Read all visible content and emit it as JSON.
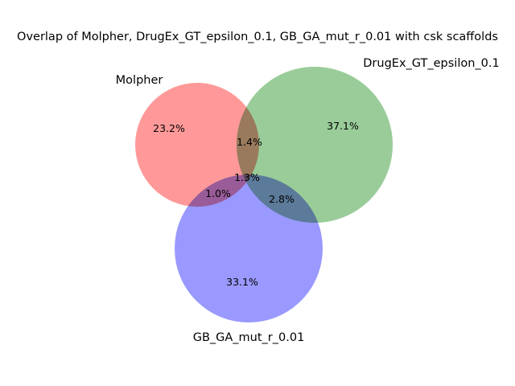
{
  "chart_data": {
    "type": "venn3",
    "title": "Overlap of Molpher, DrugEx_GT_epsilon_0.1, GB_GA_mut_r_0.01 with csk scaffolds",
    "sets": [
      {
        "name": "Molpher",
        "color": "#ff9999"
      },
      {
        "name": "DrugEx_GT_epsilon_0.1",
        "color": "#99cc99"
      },
      {
        "name": "GB_GA_mut_r_0.01",
        "color": "#9999ff"
      }
    ],
    "regions": [
      {
        "sets": [
          "Molpher"
        ],
        "label": "23.2%",
        "value": 23.2
      },
      {
        "sets": [
          "DrugEx_GT_epsilon_0.1"
        ],
        "label": "37.1%",
        "value": 37.1
      },
      {
        "sets": [
          "GB_GA_mut_r_0.01"
        ],
        "label": "33.1%",
        "value": 33.1
      },
      {
        "sets": [
          "Molpher",
          "DrugEx_GT_epsilon_0.1"
        ],
        "label": "1.4%",
        "value": 1.4
      },
      {
        "sets": [
          "Molpher",
          "GB_GA_mut_r_0.01"
        ],
        "label": "1.0%",
        "value": 1.0
      },
      {
        "sets": [
          "DrugEx_GT_epsilon_0.1",
          "GB_GA_mut_r_0.01"
        ],
        "label": "2.8%",
        "value": 2.8
      },
      {
        "sets": [
          "Molpher",
          "DrugEx_GT_epsilon_0.1",
          "GB_GA_mut_r_0.01"
        ],
        "label": "1.3%",
        "value": 1.3
      }
    ]
  }
}
